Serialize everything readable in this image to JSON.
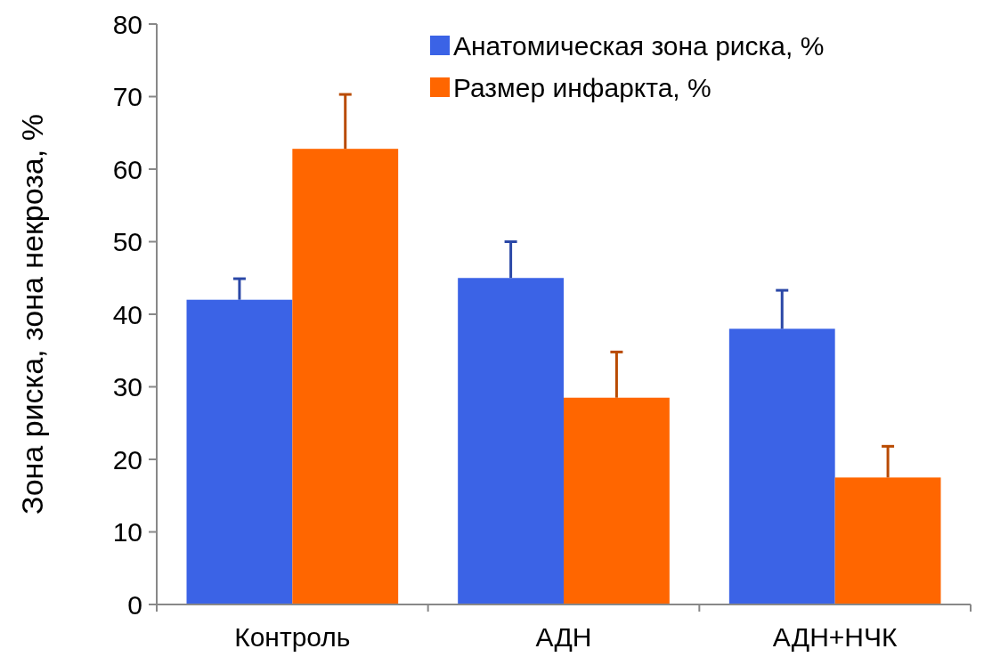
{
  "chart_data": {
    "type": "bar",
    "ylabel": "Зона риска, зона некроза, %",
    "categories": [
      "Контроль",
      "АДН",
      "АДН+НЧК"
    ],
    "series": [
      {
        "name": "Анатомическая зона риска, %",
        "color": "#3b63e6",
        "values": [
          42,
          45,
          38
        ],
        "errors": [
          [
            42,
            44.9
          ],
          [
            45,
            50
          ],
          [
            38,
            43.3
          ]
        ]
      },
      {
        "name": "Размер инфаркта, %",
        "color": "#ff6600",
        "values": [
          62.8,
          28.5,
          17.5
        ],
        "errors": [
          [
            62.8,
            70.3
          ],
          [
            28.5,
            34.8
          ],
          [
            17.5,
            21.8
          ]
        ]
      }
    ],
    "ylim": [
      0,
      80
    ],
    "yticks": [
      0,
      10,
      20,
      30,
      40,
      50,
      60,
      70,
      80
    ],
    "grid": false,
    "legend": "top right"
  }
}
